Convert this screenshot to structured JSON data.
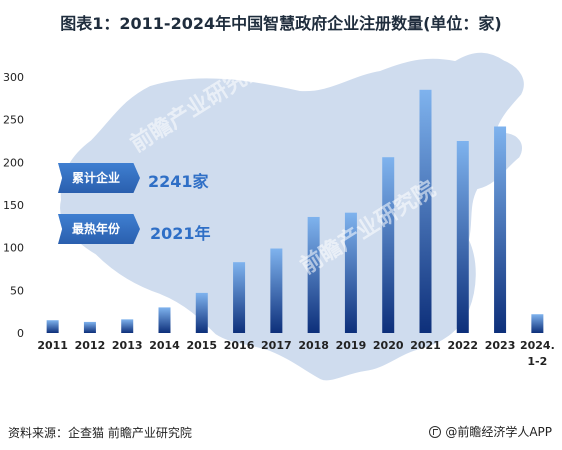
{
  "title": "图表1：2011-2024年中国智慧政府企业注册数量(单位：家)",
  "highlights": [
    {
      "label": "累计企业",
      "value": "2241家"
    },
    {
      "label": "最热年份",
      "value": "2021年"
    }
  ],
  "footer": {
    "source": "资料来源：企查猫 前瞻产业研究院",
    "brand": "@前瞻经济学人APP"
  },
  "watermarks": [
    "前瞻产业研究院",
    "前瞻产业研究院"
  ],
  "colors": {
    "bar_top": "#7fb3ee",
    "bar_bottom": "#0d2f7a",
    "map_fill": "#cfdcee",
    "map_stroke": "#ffffff",
    "axis_text": "#222222"
  },
  "chart_data": {
    "type": "bar",
    "categories": [
      "2011",
      "2012",
      "2013",
      "2014",
      "2015",
      "2016",
      "2017",
      "2018",
      "2019",
      "2020",
      "2021",
      "2022",
      "2023",
      "2024.1-2"
    ],
    "category_lines": [
      [
        "2011"
      ],
      [
        "2012"
      ],
      [
        "2013"
      ],
      [
        "2014"
      ],
      [
        "2015"
      ],
      [
        "2016"
      ],
      [
        "2017"
      ],
      [
        "2018"
      ],
      [
        "2019"
      ],
      [
        "2020"
      ],
      [
        "2021"
      ],
      [
        "2022"
      ],
      [
        "2023"
      ],
      [
        "2024.",
        "1-2"
      ]
    ],
    "values": [
      15,
      13,
      16,
      30,
      47,
      83,
      99,
      136,
      141,
      206,
      285,
      225,
      242,
      22
    ],
    "ylim": [
      0,
      300
    ],
    "yticks": [
      0,
      50,
      100,
      150,
      200,
      250,
      300
    ],
    "title": "",
    "xlabel": "",
    "ylabel": "",
    "grid": false,
    "background": "China map silhouette"
  }
}
